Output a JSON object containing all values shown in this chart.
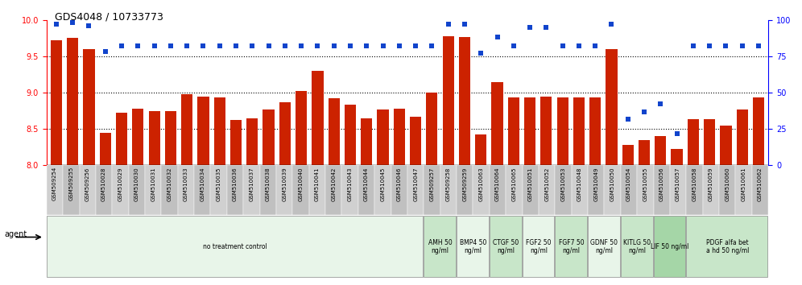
{
  "title": "GDS4048 / 10733773",
  "samples": [
    "GSM509254",
    "GSM509255",
    "GSM509256",
    "GSM510028",
    "GSM510029",
    "GSM510030",
    "GSM510031",
    "GSM510032",
    "GSM510033",
    "GSM510034",
    "GSM510035",
    "GSM510036",
    "GSM510037",
    "GSM510038",
    "GSM510039",
    "GSM510040",
    "GSM510041",
    "GSM510042",
    "GSM510043",
    "GSM510044",
    "GSM510045",
    "GSM510046",
    "GSM510047",
    "GSM509257",
    "GSM509258",
    "GSM509259",
    "GSM510063",
    "GSM510064",
    "GSM510065",
    "GSM510051",
    "GSM510052",
    "GSM510053",
    "GSM510048",
    "GSM510049",
    "GSM510050",
    "GSM510054",
    "GSM510055",
    "GSM510056",
    "GSM510057",
    "GSM510058",
    "GSM510059",
    "GSM510060",
    "GSM510061",
    "GSM510062"
  ],
  "bar_values": [
    9.72,
    9.75,
    9.6,
    8.45,
    8.72,
    8.78,
    8.75,
    8.75,
    8.98,
    8.95,
    8.93,
    8.62,
    8.65,
    8.77,
    8.87,
    9.02,
    9.3,
    8.92,
    8.83,
    8.65,
    8.77,
    8.78,
    8.67,
    9.0,
    9.78,
    9.77,
    8.42,
    9.15,
    8.93,
    8.93,
    8.95,
    8.93,
    8.93,
    8.93,
    9.6,
    8.28,
    8.35,
    8.4,
    8.22,
    8.63,
    8.63,
    8.55,
    8.77,
    8.93
  ],
  "percentile_values": [
    97,
    98,
    96,
    78,
    82,
    82,
    82,
    82,
    82,
    82,
    82,
    82,
    82,
    82,
    82,
    82,
    82,
    82,
    82,
    82,
    82,
    82,
    82,
    82,
    97,
    97,
    77,
    88,
    82,
    95,
    95,
    82,
    82,
    82,
    97,
    32,
    37,
    42,
    22,
    82,
    82,
    82,
    82,
    82
  ],
  "agent_groups": [
    {
      "label": "no treatment control",
      "start": 0,
      "end": 23,
      "color": "#e8f5e9"
    },
    {
      "label": "AMH 50\nng/ml",
      "start": 23,
      "end": 25,
      "color": "#c8e6c9"
    },
    {
      "label": "BMP4 50\nng/ml",
      "start": 25,
      "end": 27,
      "color": "#e8f5e9"
    },
    {
      "label": "CTGF 50\nng/ml",
      "start": 27,
      "end": 29,
      "color": "#c8e6c9"
    },
    {
      "label": "FGF2 50\nng/ml",
      "start": 29,
      "end": 31,
      "color": "#e8f5e9"
    },
    {
      "label": "FGF7 50\nng/ml",
      "start": 31,
      "end": 33,
      "color": "#c8e6c9"
    },
    {
      "label": "GDNF 50\nng/ml",
      "start": 33,
      "end": 35,
      "color": "#e8f5e9"
    },
    {
      "label": "KITLG 50\nng/ml",
      "start": 35,
      "end": 37,
      "color": "#c8e6c9"
    },
    {
      "label": "LIF 50 ng/ml",
      "start": 37,
      "end": 39,
      "color": "#a5d6a7"
    },
    {
      "label": "PDGF alfa bet\na hd 50 ng/ml",
      "start": 39,
      "end": 44,
      "color": "#c8e6c9"
    }
  ],
  "ylim_left": [
    8.0,
    10.0
  ],
  "ylim_right": [
    0,
    100
  ],
  "yticks_left": [
    8.0,
    8.5,
    9.0,
    9.5,
    10.0
  ],
  "yticks_right": [
    0,
    25,
    50,
    75,
    100
  ],
  "bar_color": "#cc2200",
  "dot_color": "#1144cc",
  "background_color": "#ffffff"
}
